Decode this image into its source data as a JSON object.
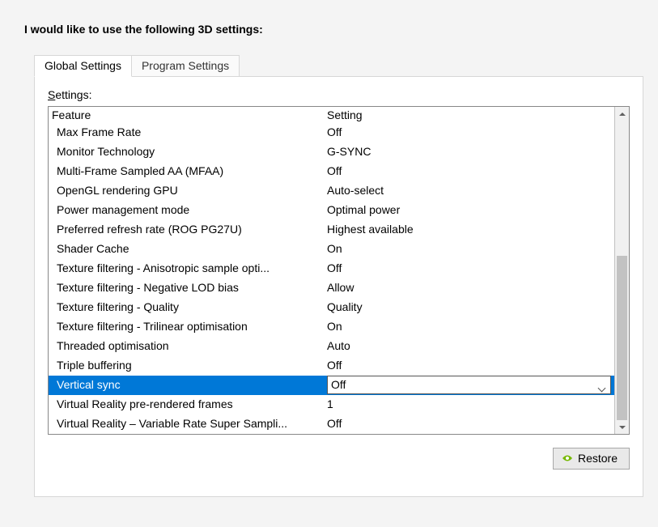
{
  "title": "I would like to use the following 3D settings:",
  "tabs": {
    "global": "Global Settings",
    "program": "Program Settings"
  },
  "settings_label_prefix": "S",
  "settings_label_rest": "ettings:",
  "columns": {
    "feature": "Feature",
    "setting": "Setting"
  },
  "rows": [
    {
      "feature": "Max Frame Rate",
      "setting": "Off",
      "selected": false
    },
    {
      "feature": "Monitor Technology",
      "setting": "G-SYNC",
      "selected": false
    },
    {
      "feature": "Multi-Frame Sampled AA (MFAA)",
      "setting": "Off",
      "selected": false
    },
    {
      "feature": "OpenGL rendering GPU",
      "setting": "Auto-select",
      "selected": false
    },
    {
      "feature": "Power management mode",
      "setting": "Optimal power",
      "selected": false
    },
    {
      "feature": "Preferred refresh rate (ROG PG27U)",
      "setting": "Highest available",
      "selected": false
    },
    {
      "feature": "Shader Cache",
      "setting": "On",
      "selected": false
    },
    {
      "feature": "Texture filtering - Anisotropic sample opti...",
      "setting": "Off",
      "selected": false
    },
    {
      "feature": "Texture filtering - Negative LOD bias",
      "setting": "Allow",
      "selected": false
    },
    {
      "feature": "Texture filtering - Quality",
      "setting": "Quality",
      "selected": false
    },
    {
      "feature": "Texture filtering - Trilinear optimisation",
      "setting": "On",
      "selected": false
    },
    {
      "feature": "Threaded optimisation",
      "setting": "Auto",
      "selected": false
    },
    {
      "feature": "Triple buffering",
      "setting": "Off",
      "selected": false
    },
    {
      "feature": "Vertical sync",
      "setting": "Off",
      "selected": true
    },
    {
      "feature": "Virtual Reality pre-rendered frames",
      "setting": "1",
      "selected": false
    },
    {
      "feature": "Virtual Reality – Variable Rate Super Sampli...",
      "setting": "Off",
      "selected": false
    }
  ],
  "restore_label": "Restore",
  "colors": {
    "selection_bg": "#0078d7",
    "selection_fg": "#ffffff",
    "panel_border": "#d7d7d7",
    "table_border": "#888888",
    "scrollbar_bg": "#f0f0f0",
    "scrollbar_thumb": "#c2c2c2",
    "nvidia_green": "#76b900"
  }
}
